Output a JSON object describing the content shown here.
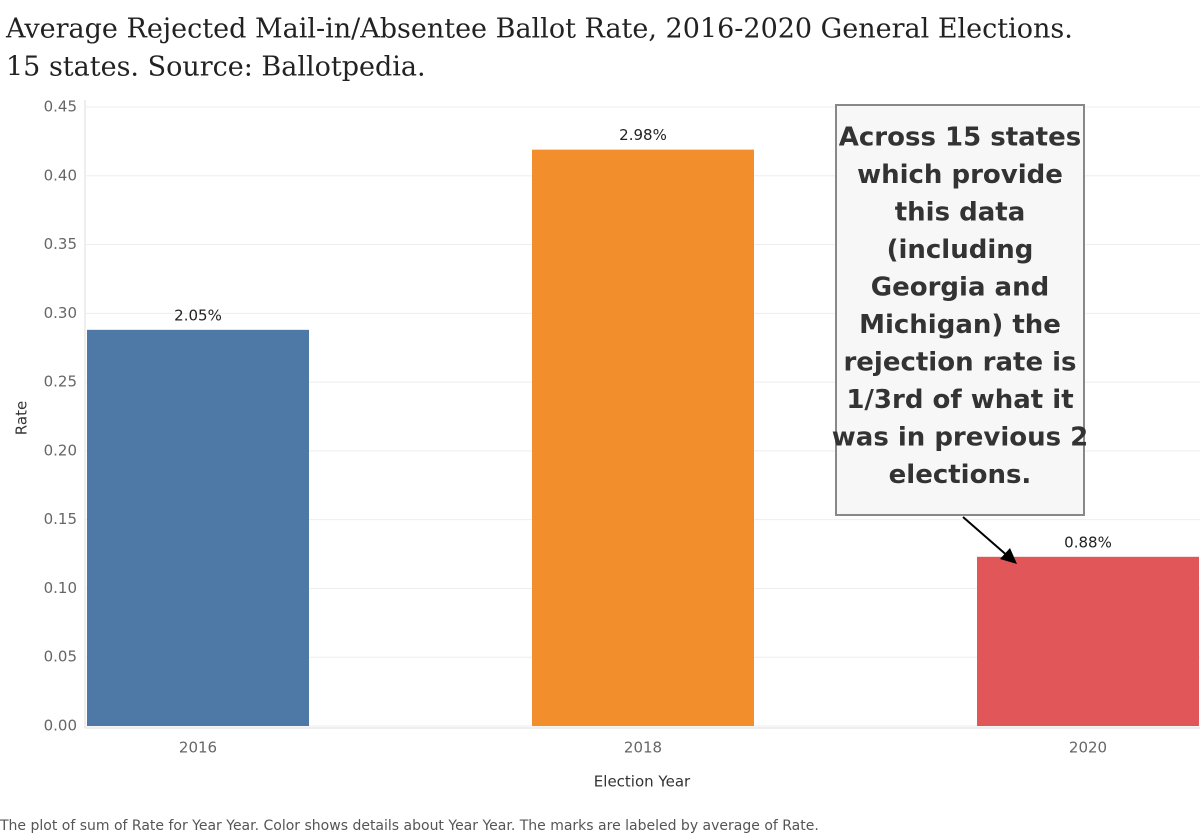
{
  "chart_data": {
    "type": "bar",
    "title_lines": [
      "Average Rejected Mail-in/Absentee Ballot Rate, 2016-2020 General Elections.",
      "15 states. Source: Ballotpedia."
    ],
    "x_label": "Election Year",
    "y_label": "Rate",
    "categories": [
      "2016",
      "2018",
      "2020"
    ],
    "values": [
      0.288,
      0.419,
      0.123
    ],
    "colors": [
      "#4e79a7",
      "#f28e2b",
      "#e15759"
    ],
    "bar_labels": [
      "2.05%",
      "2.98%",
      "0.88%"
    ],
    "ylim": [
      0,
      0.45
    ],
    "yticks": [
      {
        "value": 0,
        "label": "0.00"
      },
      {
        "value": 0.05,
        "label": "0.05"
      },
      {
        "value": 0.1,
        "label": "0.10"
      },
      {
        "value": 0.15,
        "label": "0.15"
      },
      {
        "value": 0.2,
        "label": "0.20"
      },
      {
        "value": 0.25,
        "label": "0.25"
      },
      {
        "value": 0.3,
        "label": "0.30"
      },
      {
        "value": 0.35,
        "label": "0.35"
      },
      {
        "value": 0.4,
        "label": "0.40"
      },
      {
        "value": 0.45,
        "label": "0.45"
      }
    ],
    "grid": true,
    "annotation_lines": [
      "Across 15 states",
      "which provide",
      "this data",
      "(including",
      "Georgia and",
      "Michigan) the",
      "rejection rate is",
      "1/3rd of what it",
      "was in previous 2",
      "elections."
    ],
    "footer": "The plot of sum of Rate for Year Year.  Color shows details about Year Year.  The marks are labeled by average of Rate."
  }
}
